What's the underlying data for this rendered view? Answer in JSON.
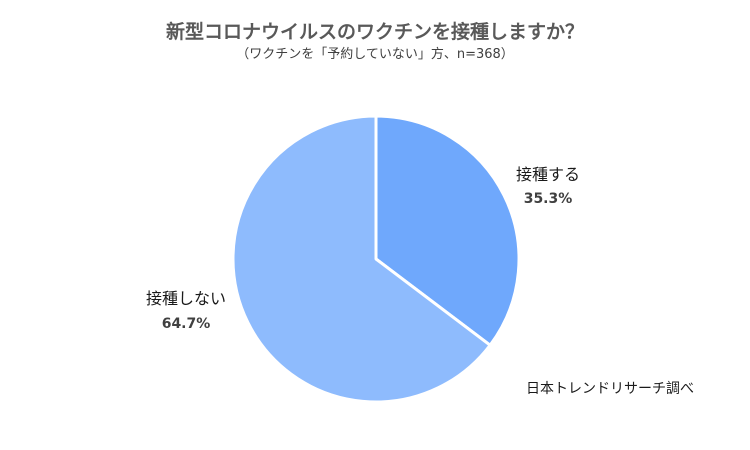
{
  "chart_data": {
    "type": "pie",
    "title": "新型コロナウイルスのワクチンを接種しますか？",
    "subtitle": "（ワクチンを「予約していない」方、n=368）",
    "slices": [
      {
        "label": "接種する",
        "value": 35.3,
        "value_label": "35.3%",
        "color": "#6fa8fc"
      },
      {
        "label": "接種しない",
        "value": 64.7,
        "value_label": "64.7%",
        "color": "#8ebbfd"
      }
    ],
    "start_angle": "12 o'clock",
    "direction": "clockwise",
    "separator_color": "#ffffff",
    "source": "日本トレンドリサーチ調べ"
  }
}
